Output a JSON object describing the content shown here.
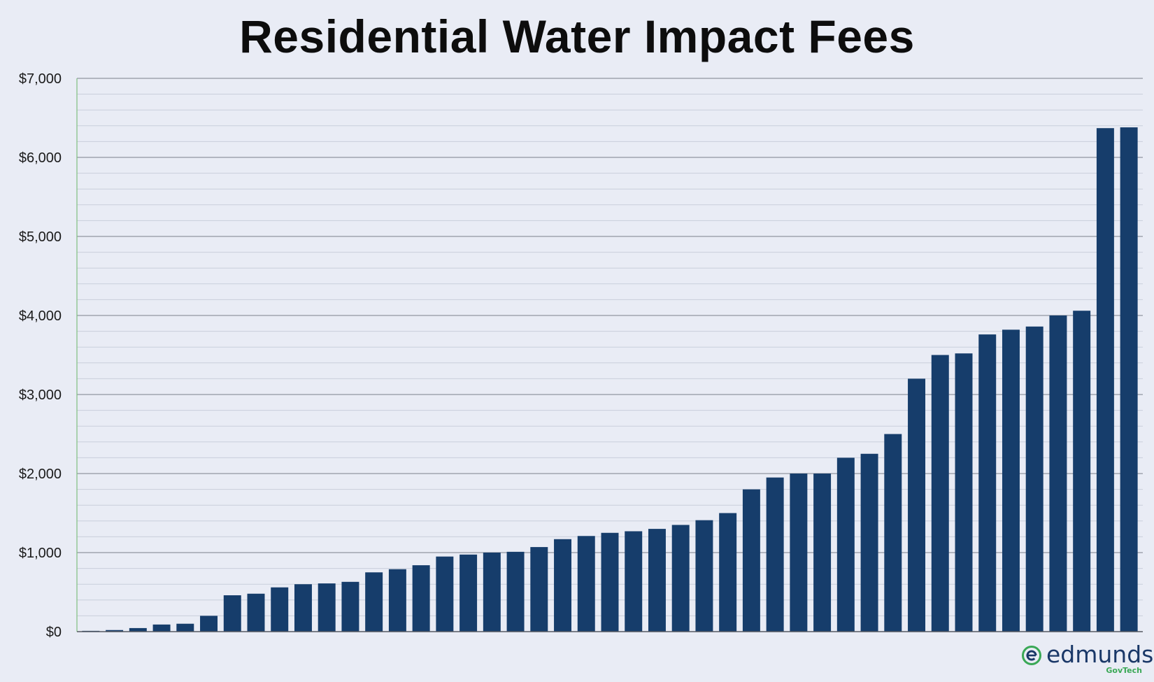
{
  "chart_data": {
    "type": "bar",
    "title": "Residential Water Impact Fees",
    "xlabel": "",
    "ylabel": "",
    "ylim": [
      0,
      7000
    ],
    "yticks": [
      "$0",
      "$1,000",
      "$2,000",
      "$3,000",
      "$4,000",
      "$5,000",
      "$6,000",
      "$7,000"
    ],
    "ytick_values": [
      0,
      1000,
      2000,
      3000,
      4000,
      5000,
      6000,
      7000
    ],
    "minor_grid_step": 200,
    "grid": true,
    "legend": "none",
    "bar_color": "#163d6b",
    "values": [
      10,
      20,
      45,
      90,
      100,
      200,
      460,
      480,
      560,
      600,
      610,
      630,
      750,
      790,
      840,
      950,
      975,
      1000,
      1010,
      1070,
      1170,
      1210,
      1250,
      1270,
      1300,
      1350,
      1410,
      1500,
      1800,
      1950,
      2000,
      2000,
      2200,
      2250,
      2500,
      3200,
      3500,
      3520,
      3760,
      3820,
      3860,
      4000,
      4060,
      6370,
      6380
    ]
  },
  "logo": {
    "word": "edmunds",
    "sub": "GovTech",
    "colors": {
      "word": "#1a3868",
      "mark": "#3aa856"
    }
  }
}
